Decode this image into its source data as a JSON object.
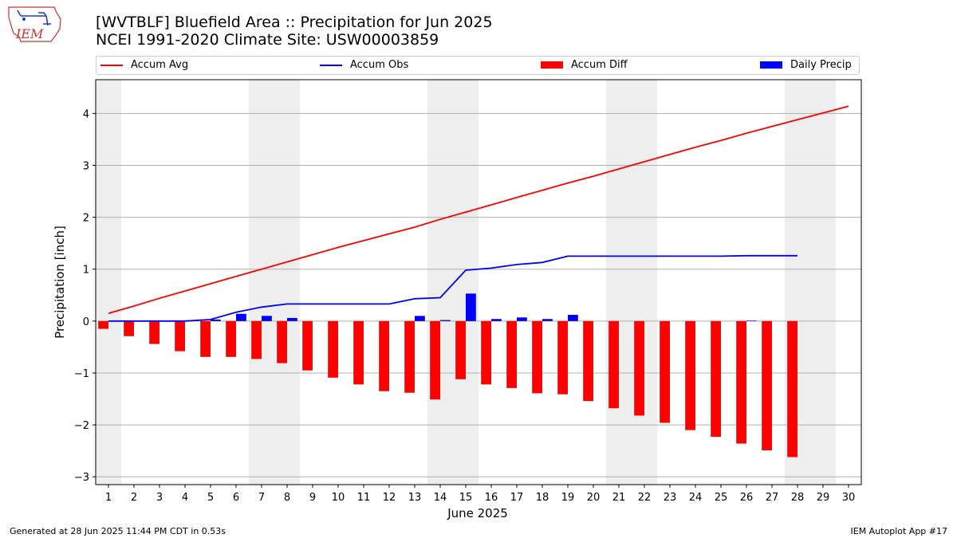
{
  "header": {
    "title_line1": "[WVTBLF] Bluefield Area :: Precipitation for Jun 2025",
    "title_line2": "NCEI 1991-2020 Climate Site: USW00003859",
    "logo_text": "IEM"
  },
  "footer": {
    "left": "Generated at 28 Jun 2025 11:44 PM CDT in 0.53s",
    "right": "IEM Autoplot App #17"
  },
  "colors": {
    "accum_avg": "#ff0000",
    "accum_obs": "#0000ff",
    "accum_diff": "#ff0000",
    "daily_precip": "#0000ff",
    "weekend_shade": "#eeeeee",
    "grid": "#b0b0b0"
  },
  "chart_data": {
    "type": "bar",
    "xlabel": "June 2025",
    "ylabel": "Precipitation [inch]",
    "xlim": [
      0.5,
      30.5
    ],
    "ylim": [
      -3.15,
      4.65
    ],
    "x_ticks": [
      1,
      2,
      3,
      4,
      5,
      6,
      7,
      8,
      9,
      10,
      11,
      12,
      13,
      14,
      15,
      16,
      17,
      18,
      19,
      20,
      21,
      22,
      23,
      24,
      25,
      26,
      27,
      28,
      29,
      30
    ],
    "y_ticks": [
      4,
      3,
      2,
      1,
      0,
      -1,
      -2,
      -3
    ],
    "y_tick_labels": [
      "4",
      "3",
      "2",
      "1",
      "0",
      "−1",
      "−2",
      "−3"
    ],
    "grid": "horizontal",
    "legend_position": "top",
    "weekend_shading": [
      [
        0.5,
        1.5
      ],
      [
        6.5,
        8.5
      ],
      [
        13.5,
        15.5
      ],
      [
        20.5,
        22.5
      ],
      [
        27.5,
        29.5
      ]
    ],
    "legend": [
      {
        "name": "Accum Avg",
        "kind": "line",
        "color": "#ff0000"
      },
      {
        "name": "Accum Obs",
        "kind": "line",
        "color": "#0000ff"
      },
      {
        "name": "Accum Diff",
        "kind": "bar",
        "color": "#ff0000"
      },
      {
        "name": "Daily Precip",
        "kind": "bar",
        "color": "#0000ff"
      }
    ],
    "series": [
      {
        "name": "Accum Avg",
        "type": "line",
        "x": [
          1,
          2,
          3,
          4,
          5,
          6,
          7,
          8,
          9,
          10,
          11,
          12,
          13,
          14,
          15,
          16,
          17,
          18,
          19,
          20,
          21,
          22,
          23,
          24,
          25,
          26,
          27,
          28,
          29,
          30
        ],
        "values": [
          0.15,
          0.29,
          0.44,
          0.58,
          0.72,
          0.86,
          1.0,
          1.14,
          1.28,
          1.42,
          1.55,
          1.68,
          1.81,
          1.96,
          2.1,
          2.24,
          2.38,
          2.52,
          2.66,
          2.79,
          2.93,
          3.07,
          3.21,
          3.35,
          3.48,
          3.62,
          3.75,
          3.88,
          4.01,
          4.14
        ]
      },
      {
        "name": "Accum Obs",
        "type": "line",
        "x": [
          1,
          2,
          3,
          4,
          5,
          6,
          7,
          8,
          9,
          10,
          11,
          12,
          13,
          14,
          15,
          16,
          17,
          18,
          19,
          20,
          21,
          22,
          23,
          24,
          25,
          26,
          27,
          28
        ],
        "values": [
          0.0,
          0.0,
          0.0,
          0.0,
          0.03,
          0.17,
          0.27,
          0.33,
          0.33,
          0.33,
          0.33,
          0.33,
          0.43,
          0.45,
          0.98,
          1.02,
          1.09,
          1.13,
          1.25,
          1.25,
          1.25,
          1.25,
          1.25,
          1.25,
          1.25,
          1.26,
          1.26,
          1.26
        ]
      },
      {
        "name": "Accum Diff",
        "type": "bar",
        "x": [
          1,
          2,
          3,
          4,
          5,
          6,
          7,
          8,
          9,
          10,
          11,
          12,
          13,
          14,
          15,
          16,
          17,
          18,
          19,
          20,
          21,
          22,
          23,
          24,
          25,
          26,
          27,
          28
        ],
        "values": [
          -0.15,
          -0.29,
          -0.44,
          -0.58,
          -0.69,
          -0.69,
          -0.73,
          -0.81,
          -0.95,
          -1.09,
          -1.22,
          -1.35,
          -1.38,
          -1.51,
          -1.12,
          -1.22,
          -1.29,
          -1.39,
          -1.41,
          -1.54,
          -1.68,
          -1.82,
          -1.96,
          -2.1,
          -2.23,
          -2.36,
          -2.49,
          -2.62
        ]
      },
      {
        "name": "Daily Precip",
        "type": "bar",
        "x": [
          1,
          2,
          3,
          4,
          5,
          6,
          7,
          8,
          9,
          10,
          11,
          12,
          13,
          14,
          15,
          16,
          17,
          18,
          19,
          20,
          21,
          22,
          23,
          24,
          25,
          26,
          27,
          28
        ],
        "values": [
          0.0,
          0.0,
          0.0,
          0.0,
          0.03,
          0.14,
          0.1,
          0.06,
          0.0,
          0.0,
          0.0,
          0.0,
          0.1,
          0.02,
          0.53,
          0.04,
          0.07,
          0.04,
          0.12,
          0.0,
          0.0,
          0.0,
          0.0,
          0.0,
          0.0,
          0.01,
          0.0,
          0.0
        ]
      }
    ]
  }
}
